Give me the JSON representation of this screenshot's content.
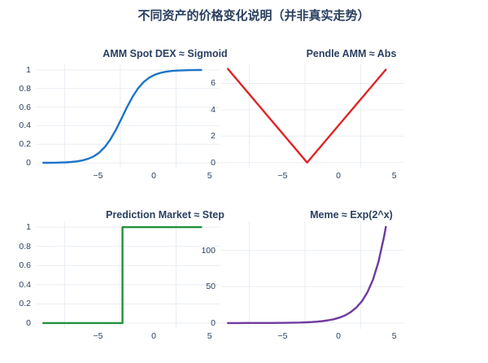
{
  "figure": {
    "title": "不同资产的价格变化说明（并非真实走势）"
  },
  "colors": {
    "font": "#2a3f5f",
    "grid": "#e9edf3",
    "background": "#ffffff"
  },
  "chart_data": [
    {
      "type": "line",
      "key": "sigmoid",
      "title": "AMM Spot DEX ≈ Sigmoid",
      "color": "#1c74c8",
      "xlim": [
        -10.5,
        5.9
      ],
      "ylim": [
        -0.06,
        1.06
      ],
      "x_tick_vals": [
        -5,
        0,
        5
      ],
      "x_tick_labels": [
        "−5",
        "0",
        "5"
      ],
      "grid_x": [
        -8,
        -3,
        2
      ],
      "y_tick_vals": [
        0,
        0.2,
        0.4,
        0.6,
        0.8,
        1
      ],
      "y_tick_labels": [
        "0",
        "0.2",
        "0.4",
        "0.6",
        "0.8",
        "1"
      ],
      "points": [
        [
          -9.9,
          0.001
        ],
        [
          -9.4,
          0.001
        ],
        [
          -8.9,
          0.002
        ],
        [
          -8.4,
          0.004
        ],
        [
          -7.9,
          0.006
        ],
        [
          -7.4,
          0.01
        ],
        [
          -6.9,
          0.016
        ],
        [
          -6.4,
          0.027
        ],
        [
          -5.9,
          0.043
        ],
        [
          -5.4,
          0.069
        ],
        [
          -4.9,
          0.109
        ],
        [
          -4.4,
          0.168
        ],
        [
          -3.9,
          0.25
        ],
        [
          -3.4,
          0.354
        ],
        [
          -2.9,
          0.475
        ],
        [
          -2.4,
          0.599
        ],
        [
          -1.9,
          0.711
        ],
        [
          -1.4,
          0.802
        ],
        [
          -0.9,
          0.87
        ],
        [
          -0.4,
          0.917
        ],
        [
          0.1,
          0.948
        ],
        [
          0.6,
          0.968
        ],
        [
          1.1,
          0.98
        ],
        [
          1.6,
          0.988
        ],
        [
          2.1,
          0.993
        ],
        [
          2.6,
          0.995
        ],
        [
          3.1,
          0.997
        ],
        [
          3.6,
          0.998
        ],
        [
          4.1,
          0.999
        ],
        [
          4.25,
          0.999
        ]
      ]
    },
    {
      "type": "line",
      "key": "abs",
      "title": "Pendle AMM ≈ Abs",
      "color": "#e02528",
      "xlim": [
        -10.5,
        5.9
      ],
      "ylim": [
        -0.45,
        7.45
      ],
      "x_tick_vals": [
        -5,
        0,
        5
      ],
      "x_tick_labels": [
        "−5",
        "0",
        "5"
      ],
      "grid_x": [
        -8,
        -3,
        2
      ],
      "y_tick_vals": [
        0,
        2,
        4,
        6
      ],
      "y_tick_labels": [
        "0",
        "2",
        "4",
        "6"
      ],
      "points": [
        [
          -9.9,
          7.1
        ],
        [
          -2.8,
          0
        ],
        [
          4.25,
          7.05
        ]
      ]
    },
    {
      "type": "line",
      "key": "step",
      "title": "Prediction Market ≈ Step",
      "color": "#21913c",
      "xlim": [
        -10.5,
        5.9
      ],
      "ylim": [
        -0.06,
        1.06
      ],
      "x_tick_vals": [
        -5,
        0,
        5
      ],
      "x_tick_labels": [
        "−5",
        "0",
        "5"
      ],
      "grid_x": [
        -8,
        -3,
        2
      ],
      "y_tick_vals": [
        0,
        0.2,
        0.4,
        0.6,
        0.8,
        1
      ],
      "y_tick_labels": [
        "0",
        "0.2",
        "0.4",
        "0.6",
        "0.8",
        "1"
      ],
      "points": [
        [
          -9.9,
          0
        ],
        [
          -2.8,
          0
        ],
        [
          -2.8,
          1
        ],
        [
          4.25,
          1
        ]
      ]
    },
    {
      "type": "line",
      "key": "meme",
      "title": "Meme ≈ Exp(2^x)",
      "color": "#6f3a9f",
      "xlim": [
        -10.5,
        5.9
      ],
      "ylim": [
        -8,
        140
      ],
      "x_tick_vals": [
        -5,
        0,
        5
      ],
      "x_tick_labels": [
        "−5",
        "0",
        "5"
      ],
      "grid_x": [
        -8,
        -3,
        2
      ],
      "y_tick_vals": [
        0,
        50,
        100
      ],
      "y_tick_labels": [
        "0",
        "50",
        "100"
      ],
      "points": [
        [
          -9.9,
          0.007
        ],
        [
          -9.4,
          0.01
        ],
        [
          -8.9,
          0.015
        ],
        [
          -8.4,
          0.021
        ],
        [
          -7.9,
          0.029
        ],
        [
          -7.4,
          0.041
        ],
        [
          -6.9,
          0.059
        ],
        [
          -6.4,
          0.083
        ],
        [
          -5.9,
          0.117
        ],
        [
          -5.4,
          0.165
        ],
        [
          -4.9,
          0.233
        ],
        [
          -4.4,
          0.33
        ],
        [
          -3.9,
          0.466
        ],
        [
          -3.4,
          0.66
        ],
        [
          -2.9,
          0.933
        ],
        [
          -2.4,
          1.32
        ],
        [
          -1.9,
          1.866
        ],
        [
          -1.4,
          2.639
        ],
        [
          -0.9,
          3.732
        ],
        [
          -0.4,
          5.278
        ],
        [
          0.1,
          7.464
        ],
        [
          0.6,
          10.556
        ],
        [
          1.1,
          14.929
        ],
        [
          1.6,
          21.112
        ],
        [
          2.1,
          29.857
        ],
        [
          2.6,
          42.224
        ],
        [
          3.1,
          59.714
        ],
        [
          3.6,
          84.449
        ],
        [
          4.1,
          119.428
        ],
        [
          4.25,
          132.5
        ]
      ]
    }
  ]
}
